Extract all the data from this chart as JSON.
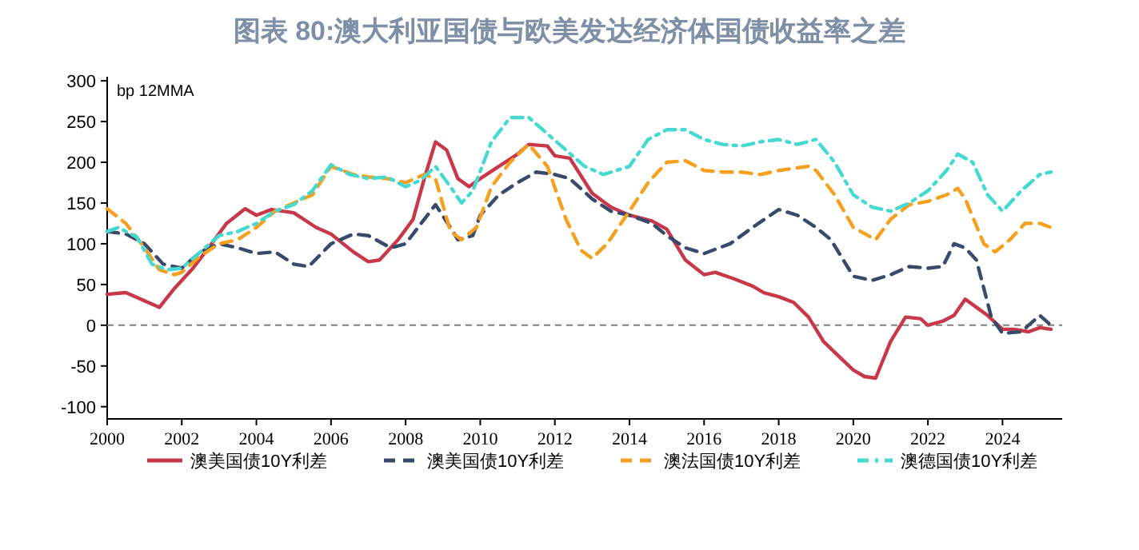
{
  "chart_data": {
    "type": "line",
    "title": "图表 80:澳大利亚国债与欧美发达经济体国债收益率之差",
    "annotations": [
      "bp 12MMA"
    ],
    "xlim": [
      2000,
      2025.6
    ],
    "xticks": [
      2000,
      2002,
      2004,
      2006,
      2008,
      2010,
      2012,
      2014,
      2016,
      2018,
      2020,
      2022,
      2024
    ],
    "ylim": [
      -115,
      305
    ],
    "yticks": [
      -100,
      -50,
      0,
      50,
      100,
      150,
      200,
      250,
      300
    ],
    "grid": false,
    "legend": "bottom",
    "ref_lines": [
      {
        "axis": "y",
        "value": 0,
        "color": "#808080",
        "line_style": "dashed"
      }
    ],
    "series": [
      {
        "name": "澳美国债10Y利差",
        "color": "#c8384a",
        "line_style": "solid",
        "x": [
          2000,
          2000.5,
          2001,
          2001.4,
          2001.8,
          2002.3,
          2002.8,
          2003.2,
          2003.7,
          2004,
          2004.4,
          2005,
          2005.6,
          2006,
          2006.6,
          2007,
          2007.3,
          2007.8,
          2008.2,
          2008.5,
          2008.8,
          2009.1,
          2009.4,
          2009.7,
          2010,
          2010.5,
          2011,
          2011.3,
          2011.8,
          2012,
          2012.4,
          2013,
          2013.5,
          2014,
          2014.6,
          2015,
          2015.5,
          2016,
          2016.3,
          2016.8,
          2017.3,
          2017.6,
          2018,
          2018.4,
          2018.8,
          2019.2,
          2019.7,
          2020,
          2020.3,
          2020.6,
          2021,
          2021.4,
          2021.8,
          2022,
          2022.4,
          2022.7,
          2023,
          2023.3,
          2023.6,
          2024,
          2024.3,
          2024.7,
          2025,
          2025.3
        ],
        "values": [
          38,
          40,
          30,
          22,
          45,
          70,
          100,
          125,
          143,
          135,
          142,
          138,
          120,
          112,
          90,
          78,
          80,
          105,
          130,
          180,
          225,
          215,
          180,
          170,
          180,
          195,
          210,
          222,
          220,
          208,
          205,
          162,
          145,
          135,
          128,
          118,
          80,
          62,
          65,
          57,
          48,
          40,
          35,
          28,
          10,
          -20,
          -42,
          -55,
          -63,
          -65,
          -20,
          10,
          8,
          0,
          5,
          12,
          32,
          22,
          12,
          -5,
          -5,
          -8,
          -3,
          -5
        ]
      },
      {
        "name": "澳美国债10Y利差",
        "color": "#3a4a6b",
        "line_style": "dashed",
        "x": [
          2000,
          2000.5,
          2001,
          2001.5,
          2002,
          2002.5,
          2003,
          2003.5,
          2004,
          2004.5,
          2005,
          2005.4,
          2006,
          2006.6,
          2007,
          2007.6,
          2008,
          2008.5,
          2008.8,
          2009.2,
          2009.4,
          2009.8,
          2010,
          2010.5,
          2011,
          2011.5,
          2012,
          2012.4,
          2013,
          2013.5,
          2014,
          2014.6,
          2015,
          2015.5,
          2016,
          2016.7,
          2017.3,
          2018,
          2018.5,
          2019,
          2019.4,
          2020,
          2020.5,
          2021,
          2021.5,
          2022,
          2022.4,
          2022.7,
          2023,
          2023.3,
          2023.7,
          2024,
          2024.5,
          2025,
          2025.3
        ],
        "values": [
          115,
          112,
          100,
          75,
          70,
          90,
          100,
          95,
          88,
          90,
          75,
          72,
          100,
          112,
          110,
          95,
          100,
          130,
          148,
          120,
          105,
          110,
          135,
          160,
          175,
          188,
          185,
          180,
          155,
          140,
          135,
          125,
          110,
          95,
          88,
          100,
          120,
          142,
          135,
          120,
          105,
          60,
          55,
          62,
          72,
          70,
          72,
          100,
          95,
          80,
          10,
          -10,
          -8,
          12,
          0
        ]
      },
      {
        "name": "澳法国债10Y利差",
        "color": "#f5a01f",
        "line_style": "dashed",
        "x": [
          2000,
          2000.5,
          2001,
          2001.4,
          2001.8,
          2002,
          2002.5,
          2003,
          2003.5,
          2004,
          2004.5,
          2005,
          2005.5,
          2006,
          2006.6,
          2007,
          2007.5,
          2008,
          2008.5,
          2008.8,
          2009.2,
          2009.5,
          2009.9,
          2010.3,
          2010.8,
          2011.3,
          2011.8,
          2012.3,
          2012.7,
          2013,
          2013.4,
          2014,
          2014.5,
          2015,
          2015.5,
          2016,
          2016.5,
          2017,
          2017.5,
          2018,
          2018.8,
          2019,
          2019.5,
          2020,
          2020.6,
          2021,
          2021.5,
          2022,
          2022.5,
          2022.8,
          2023,
          2023.5,
          2023.8,
          2024.2,
          2024.6,
          2025,
          2025.3
        ],
        "values": [
          143,
          125,
          95,
          68,
          62,
          65,
          85,
          100,
          105,
          120,
          140,
          150,
          160,
          195,
          185,
          182,
          180,
          175,
          185,
          180,
          115,
          105,
          120,
          170,
          200,
          222,
          195,
          130,
          92,
          82,
          100,
          140,
          175,
          200,
          202,
          190,
          188,
          188,
          185,
          190,
          195,
          190,
          160,
          120,
          105,
          130,
          148,
          152,
          160,
          168,
          155,
          100,
          90,
          105,
          125,
          125,
          120
        ]
      },
      {
        "name": "澳德国债10Y利差",
        "color": "#45d9d0",
        "line_style": "dashdot",
        "x": [
          2000,
          2000.3,
          2000.8,
          2001.2,
          2001.6,
          2002,
          2002.5,
          2003,
          2003.5,
          2004,
          2004.5,
          2005,
          2005.5,
          2006,
          2006.5,
          2007,
          2007.5,
          2008,
          2008.4,
          2008.8,
          2009.2,
          2009.5,
          2009.8,
          2010.3,
          2010.8,
          2011.3,
          2011.8,
          2012.3,
          2012.8,
          2013.3,
          2014,
          2014.5,
          2015,
          2015.5,
          2016,
          2016.5,
          2017,
          2017.5,
          2018,
          2018.5,
          2019,
          2019.5,
          2020,
          2020.5,
          2021,
          2021.5,
          2022,
          2022.5,
          2022.8,
          2023.2,
          2023.6,
          2024,
          2024.5,
          2025,
          2025.3
        ],
        "values": [
          115,
          120,
          108,
          75,
          68,
          70,
          90,
          110,
          115,
          125,
          140,
          148,
          165,
          197,
          185,
          180,
          182,
          170,
          178,
          195,
          170,
          150,
          165,
          225,
          255,
          255,
          235,
          215,
          195,
          185,
          195,
          228,
          240,
          240,
          228,
          222,
          220,
          225,
          228,
          222,
          228,
          200,
          160,
          145,
          140,
          150,
          165,
          190,
          210,
          200,
          160,
          140,
          165,
          185,
          188
        ]
      }
    ]
  }
}
